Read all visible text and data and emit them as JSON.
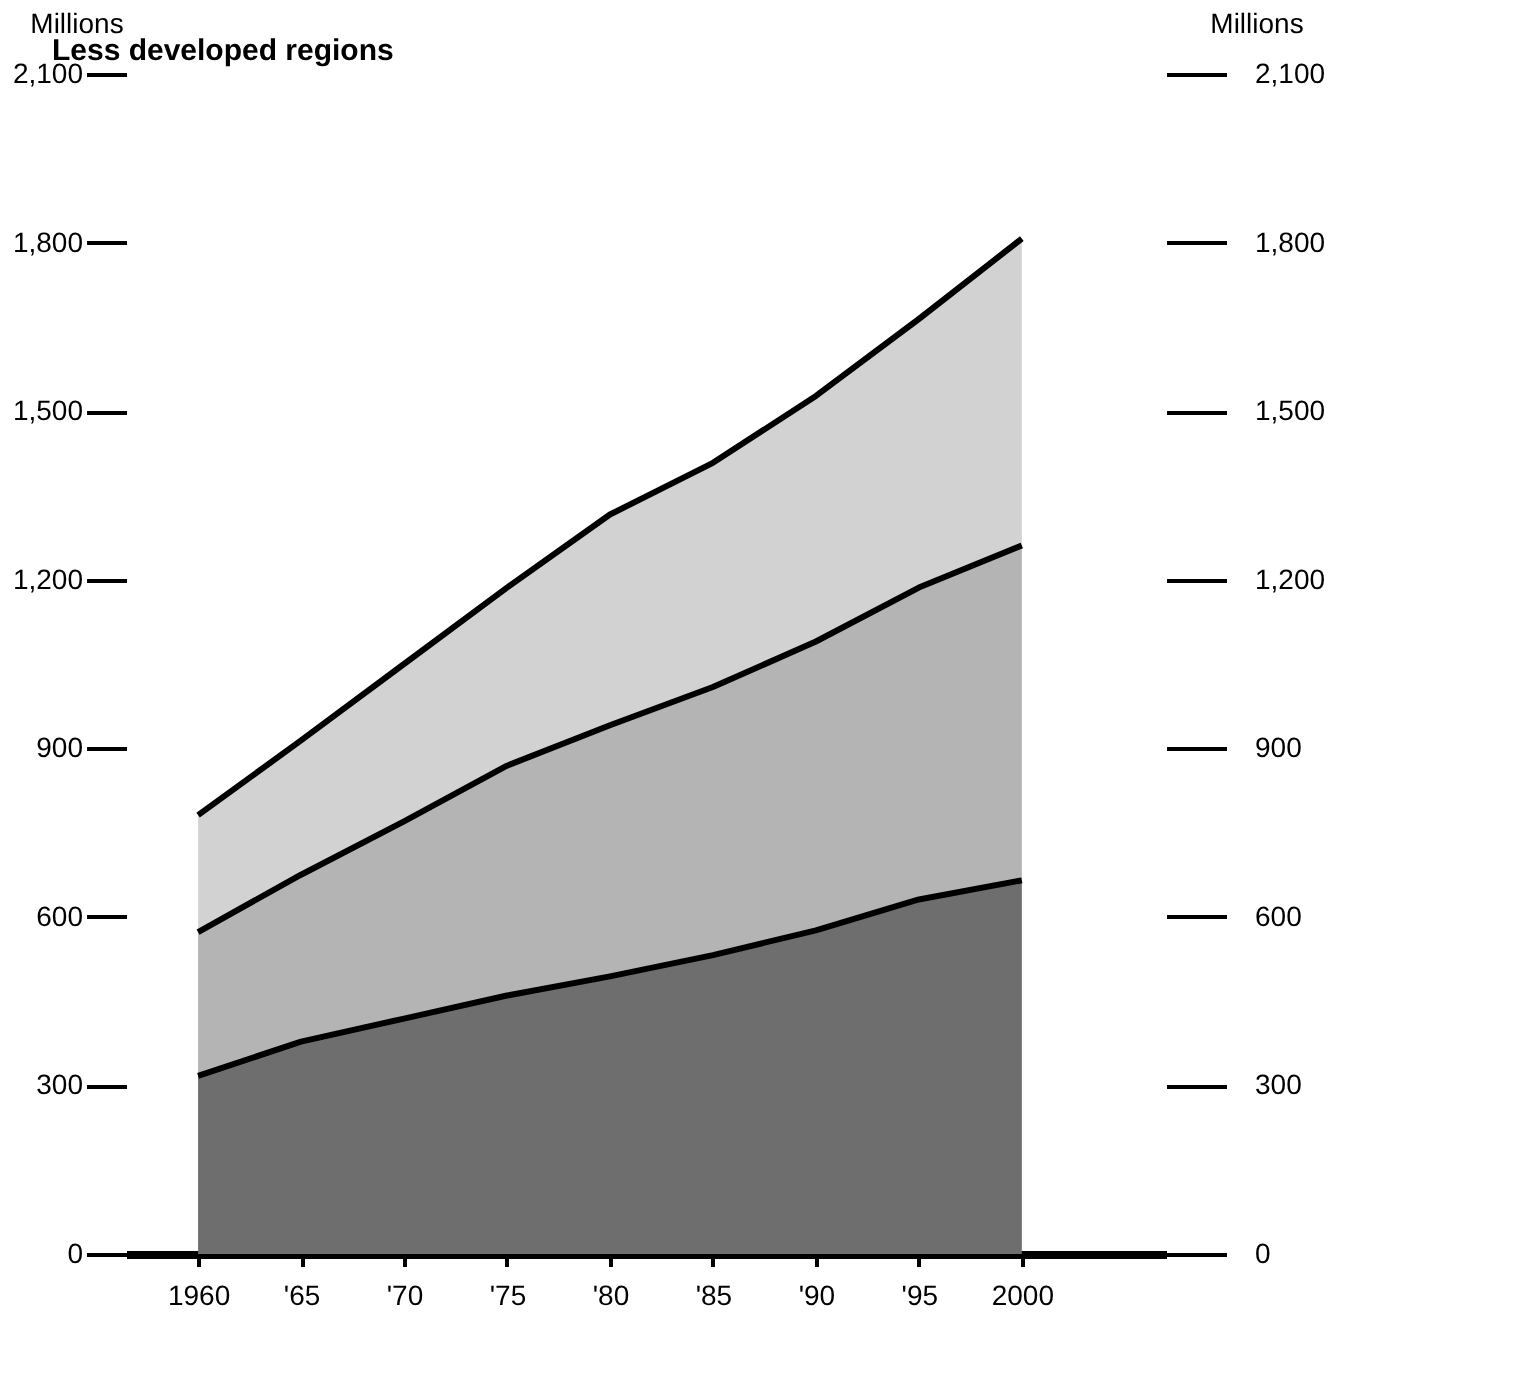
{
  "chart_data": {
    "type": "area",
    "title": "Less developed regions",
    "ylabel": "Millions",
    "y2label": "Millions",
    "stacked": true,
    "x": [
      1960,
      1965,
      1970,
      1975,
      1980,
      1985,
      1990,
      1995,
      2000
    ],
    "series": [
      {
        "color": "#6e6e6e",
        "values": [
          317,
          378,
          419,
          460,
          494,
          532,
          576,
          631,
          665
        ]
      },
      {
        "color": "#b4b4b4",
        "values": [
          256,
          297,
          351,
          409,
          447,
          477,
          514,
          555,
          596
        ]
      },
      {
        "color": "#d2d2d2",
        "values": [
          208,
          239,
          280,
          317,
          375,
          399,
          437,
          478,
          546
        ]
      }
    ],
    "xlim": [
      1956.5,
      2007
    ],
    "xticks": [
      1960,
      {
        "value": 1965,
        "label": "'65"
      },
      {
        "value": 1970,
        "label": "'70"
      },
      {
        "value": 1975,
        "label": "'75"
      },
      {
        "value": 1980,
        "label": "'80"
      },
      {
        "value": 1985,
        "label": "'85"
      },
      {
        "value": 1990,
        "label": "'90"
      },
      {
        "value": 1995,
        "label": "'95"
      },
      2000
    ],
    "ylim": [
      0,
      2100
    ],
    "yticks": [
      {
        "value": 0,
        "label": "0"
      },
      {
        "value": 300,
        "label": "300"
      },
      {
        "value": 600,
        "label": "600"
      },
      {
        "value": 900,
        "label": "900"
      },
      {
        "value": 1200,
        "label": "1,200"
      },
      {
        "value": 1500,
        "label": "1,500"
      },
      {
        "value": 1800,
        "label": "1,800"
      },
      {
        "value": 2100,
        "label": "2,100"
      }
    ],
    "y2lim": [
      0,
      2100
    ],
    "y2ticks": [
      {
        "value": 0,
        "label": "0"
      },
      {
        "value": 300,
        "label": "300"
      },
      {
        "value": 600,
        "label": "600"
      },
      {
        "value": 900,
        "label": "900"
      },
      {
        "value": 1200,
        "label": "1,200"
      },
      {
        "value": 1500,
        "label": "1,500"
      },
      {
        "value": 1800,
        "label": "1,800"
      },
      {
        "value": 2100,
        "label": "2,100"
      }
    ],
    "grid": false,
    "legend": false
  }
}
